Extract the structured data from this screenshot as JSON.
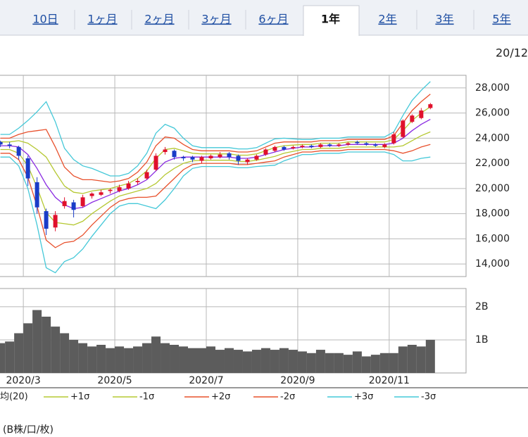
{
  "tabs": [
    "10日",
    "1ヶ月",
    "2ヶ月",
    "3ヶ月",
    "6ヶ月",
    "1年",
    "2年",
    "3年",
    "5年"
  ],
  "selected_tab": 5,
  "date_label": "20/12",
  "unit_note": "(B株/口/枚)",
  "chart_data": [
    {
      "type": "candlestick",
      "x": [
        2.5,
        2.7,
        2.9,
        3.1,
        3.3,
        3.5,
        3.7,
        3.9,
        4.1,
        4.3,
        4.5,
        4.7,
        4.9,
        5.1,
        5.3,
        5.5,
        5.7,
        5.9,
        6.1,
        6.3,
        6.5,
        6.7,
        6.9,
        7.1,
        7.3,
        7.5,
        7.7,
        7.9,
        8.1,
        8.3,
        8.5,
        8.7,
        8.9,
        9.1,
        9.3,
        9.5,
        9.7,
        9.9,
        10.1,
        10.3,
        10.5,
        10.7,
        10.9,
        11.1,
        11.3,
        11.5,
        11.7,
        11.9
      ],
      "open": [
        23700,
        23500,
        23300,
        22400,
        20500,
        18200,
        16900,
        18600,
        18900,
        18600,
        19400,
        19500,
        19800,
        19800,
        20000,
        20500,
        20800,
        21500,
        22900,
        23000,
        22500,
        22500,
        22200,
        22400,
        22500,
        22800,
        22600,
        22100,
        22300,
        22700,
        23000,
        23300,
        23200,
        23300,
        23400,
        23300,
        23500,
        23400,
        23500,
        23700,
        23600,
        23500,
        23300,
        23600,
        24100,
        25300,
        25600,
        26400
      ],
      "high": [
        23800,
        23700,
        23400,
        22600,
        20900,
        18400,
        18200,
        19300,
        19100,
        19500,
        19700,
        19900,
        20000,
        20300,
        20600,
        20800,
        21500,
        22800,
        23300,
        23100,
        22600,
        22600,
        22600,
        22700,
        22900,
        22900,
        22700,
        22400,
        22700,
        23200,
        23400,
        23400,
        23400,
        23500,
        23500,
        23600,
        23600,
        23600,
        23700,
        23800,
        23700,
        23600,
        23600,
        24500,
        25500,
        25900,
        26400,
        26800
      ],
      "low": [
        23300,
        23200,
        22300,
        20200,
        18000,
        16300,
        16600,
        18400,
        17700,
        18500,
        19200,
        19400,
        19600,
        19700,
        19900,
        20300,
        20700,
        21400,
        22700,
        22300,
        22200,
        22100,
        22000,
        22300,
        22400,
        22300,
        21900,
        21900,
        22200,
        22600,
        22900,
        23000,
        23100,
        23200,
        23200,
        23200,
        23300,
        23300,
        23400,
        23500,
        23400,
        23300,
        23200,
        23500,
        24000,
        25200,
        25500,
        26300
      ],
      "close": [
        23500,
        23400,
        22600,
        20800,
        18500,
        16800,
        17900,
        19000,
        18300,
        19300,
        19600,
        19700,
        19900,
        20100,
        20400,
        20600,
        21300,
        22600,
        23100,
        22500,
        22400,
        22300,
        22500,
        22600,
        22700,
        22500,
        22200,
        22300,
        22600,
        23100,
        23300,
        23100,
        23300,
        23400,
        23300,
        23500,
        23400,
        23500,
        23600,
        23600,
        23500,
        23400,
        23500,
        24300,
        25400,
        25800,
        26200,
        26700
      ],
      "up_color": "#e0102c",
      "down_color": "#1a3cc8",
      "series": [
        {
          "name": "均(20)",
          "color": "#8a2be2",
          "values": [
            23400,
            23400,
            23300,
            22700,
            21600,
            20300,
            19300,
            18700,
            18400,
            18500,
            18900,
            19200,
            19500,
            19800,
            20000,
            20300,
            20700,
            21400,
            22100,
            22400,
            22500,
            22500,
            22500,
            22500,
            22500,
            22500,
            22400,
            22400,
            22500,
            22700,
            22900,
            23100,
            23200,
            23300,
            23300,
            23400,
            23400,
            23400,
            23500,
            23500,
            23500,
            23500,
            23500,
            23600,
            24000,
            24600,
            25100,
            25500
          ]
        },
        {
          "name": "+1σ",
          "color": "#b5c832",
          "values": [
            23700,
            23700,
            23800,
            23600,
            23100,
            22500,
            21300,
            20200,
            19700,
            19600,
            19800,
            19900,
            20000,
            20200,
            20400,
            20800,
            21400,
            22400,
            23100,
            23200,
            23000,
            22800,
            22750,
            22750,
            22750,
            22750,
            22650,
            22650,
            22750,
            23000,
            23250,
            23400,
            23450,
            23500,
            23500,
            23600,
            23600,
            23600,
            23700,
            23700,
            23700,
            23700,
            23700,
            23900,
            24600,
            25400,
            26000,
            26500
          ]
        },
        {
          "name": "-1σ",
          "color": "#b5c832",
          "values": [
            23100,
            23100,
            22800,
            21800,
            20100,
            18100,
            17300,
            17200,
            17100,
            17400,
            18000,
            18500,
            19000,
            19400,
            19600,
            19800,
            20000,
            20400,
            21100,
            21600,
            22000,
            22200,
            22250,
            22250,
            22250,
            22250,
            22150,
            22150,
            22250,
            22400,
            22550,
            22800,
            22950,
            23100,
            23100,
            23200,
            23200,
            23200,
            23300,
            23300,
            23300,
            23300,
            23300,
            23300,
            23400,
            23800,
            24200,
            24500
          ]
        },
        {
          "name": "+2σ",
          "color": "#e8502c",
          "values": [
            24000,
            24000,
            24300,
            24500,
            24600,
            24700,
            23300,
            21700,
            21000,
            20700,
            20700,
            20600,
            20500,
            20600,
            20800,
            21300,
            22100,
            23400,
            24100,
            24000,
            23500,
            23100,
            23000,
            23000,
            23000,
            23000,
            22900,
            22900,
            23000,
            23300,
            23600,
            23700,
            23700,
            23700,
            23700,
            23800,
            23800,
            23800,
            23900,
            23900,
            23900,
            23900,
            23900,
            24200,
            25200,
            26200,
            26900,
            27500
          ]
        },
        {
          "name": "-2σ",
          "color": "#e8502c",
          "values": [
            22800,
            22800,
            22300,
            20900,
            18600,
            15900,
            15300,
            15700,
            15800,
            16300,
            17100,
            17800,
            18500,
            19000,
            19200,
            19300,
            19300,
            19400,
            20100,
            20800,
            21500,
            21900,
            22000,
            22000,
            22000,
            22000,
            21900,
            21900,
            22000,
            22100,
            22200,
            22500,
            22700,
            22900,
            22900,
            23000,
            23000,
            23000,
            23100,
            23100,
            23100,
            23100,
            23100,
            23000,
            22800,
            23000,
            23300,
            23500
          ]
        },
        {
          "name": "+3σ",
          "color": "#44c8d8",
          "values": [
            24300,
            24300,
            24800,
            25400,
            26100,
            26900,
            25300,
            23200,
            22300,
            21800,
            21600,
            21300,
            21000,
            21000,
            21200,
            21800,
            22800,
            24400,
            25100,
            24800,
            24000,
            23400,
            23250,
            23250,
            23250,
            23250,
            23150,
            23150,
            23250,
            23600,
            23950,
            24000,
            23950,
            23900,
            23900,
            24000,
            24000,
            24000,
            24100,
            24100,
            24100,
            24100,
            24100,
            24500,
            25800,
            27000,
            27800,
            28500
          ]
        },
        {
          "name": "-3σ",
          "color": "#44c8d8",
          "values": [
            22500,
            22500,
            21800,
            20000,
            17100,
            13700,
            13300,
            14200,
            14500,
            15200,
            16200,
            17100,
            18000,
            18600,
            18800,
            18800,
            18600,
            18400,
            19100,
            20000,
            21000,
            21600,
            21750,
            21750,
            21750,
            21750,
            21650,
            21650,
            21750,
            21800,
            21850,
            22200,
            22450,
            22700,
            22700,
            22800,
            22800,
            22800,
            22900,
            22900,
            22900,
            22900,
            22900,
            22700,
            22200,
            22200,
            22400,
            22500
          ]
        }
      ],
      "xlim": [
        2.49,
        12.68
      ],
      "ylim": [
        13000,
        29000
      ],
      "yticks": [
        {
          "value": 14000,
          "label": "14,000"
        },
        {
          "value": 16000,
          "label": "16,000"
        },
        {
          "value": 18000,
          "label": "18,000"
        },
        {
          "value": 20000,
          "label": "20,000"
        },
        {
          "value": 22000,
          "label": "22,000"
        },
        {
          "value": 24000,
          "label": "24,000"
        },
        {
          "value": 26000,
          "label": "26,000"
        },
        {
          "value": 28000,
          "label": "28,000"
        }
      ],
      "grid": true
    },
    {
      "type": "bar",
      "x": [
        2.5,
        2.7,
        2.9,
        3.1,
        3.3,
        3.5,
        3.7,
        3.9,
        4.1,
        4.3,
        4.5,
        4.7,
        4.9,
        5.1,
        5.3,
        5.5,
        5.7,
        5.9,
        6.1,
        6.3,
        6.5,
        6.7,
        6.9,
        7.1,
        7.3,
        7.5,
        7.7,
        7.9,
        8.1,
        8.3,
        8.5,
        8.7,
        8.9,
        9.1,
        9.3,
        9.5,
        9.7,
        9.9,
        10.1,
        10.3,
        10.5,
        10.7,
        10.9,
        11.1,
        11.3,
        11.5,
        11.7,
        11.9
      ],
      "values": [
        0.9,
        0.95,
        1.2,
        1.5,
        1.9,
        1.7,
        1.4,
        1.2,
        1.0,
        0.9,
        0.8,
        0.85,
        0.75,
        0.8,
        0.75,
        0.8,
        0.9,
        1.1,
        0.9,
        0.85,
        0.8,
        0.75,
        0.75,
        0.8,
        0.7,
        0.75,
        0.7,
        0.65,
        0.7,
        0.75,
        0.7,
        0.75,
        0.7,
        0.65,
        0.6,
        0.7,
        0.6,
        0.6,
        0.55,
        0.65,
        0.5,
        0.55,
        0.6,
        0.6,
        0.8,
        0.85,
        0.8,
        1.0
      ],
      "color": "#5c5c5c",
      "xlim": [
        2.49,
        12.68
      ],
      "ylim": [
        0,
        2.55
      ],
      "yticks": [
        {
          "value": 1,
          "label": "1B"
        },
        {
          "value": 2,
          "label": "2B"
        }
      ],
      "xticks": [
        {
          "value": 3,
          "label": "2020/3"
        },
        {
          "value": 5,
          "label": "2020/5"
        },
        {
          "value": 7,
          "label": "2020/7"
        },
        {
          "value": 9,
          "label": "2020/9"
        },
        {
          "value": 11,
          "label": "2020/11"
        }
      ],
      "grid": true
    }
  ]
}
